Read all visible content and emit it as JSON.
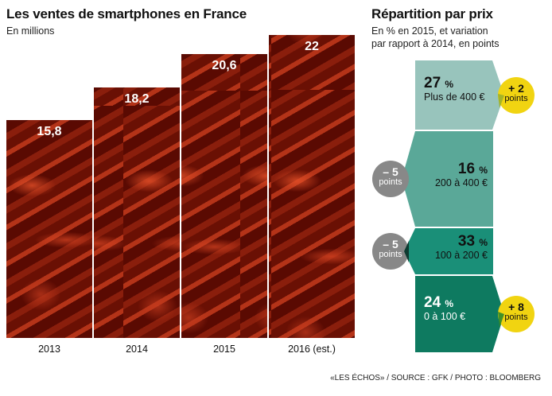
{
  "left": {
    "title": "Les ventes de smartphones en France",
    "subtitle": "En millions"
  },
  "right": {
    "title": "Répartition par prix",
    "subtitle_line1": "En % en 2015, et variation",
    "subtitle_line2": "par rapport à 2014, en points"
  },
  "source": "«LES ÉCHOS» / SOURCE : GFK / PHOTO : BLOOMBERG",
  "colors": {
    "bar": "#6a1004",
    "seg1": "#98c4bc",
    "seg2": "#5aa898",
    "seg3": "#1a8f78",
    "seg4": "#0e7a60",
    "yellow": "#f1d411",
    "grey": "#888888"
  },
  "chart_data": [
    {
      "type": "bar",
      "title": "Les ventes de smartphones en France",
      "ylabel": "En millions",
      "categories": [
        "2013",
        "2014",
        "2015",
        "2016 (est.)"
      ],
      "values": [
        15.8,
        18.2,
        20.6,
        22
      ],
      "labels": [
        "15,8",
        "18,2",
        "20,6",
        "22"
      ],
      "ylim": [
        0,
        22.5
      ]
    },
    {
      "type": "stacked",
      "title": "Répartition par prix",
      "segments": [
        {
          "pct": "27",
          "unit": "%",
          "range": "Plus de 400 €",
          "change": "+ 2",
          "change_unit": "points",
          "value": 27,
          "delta": 2
        },
        {
          "pct": "16",
          "unit": "%",
          "range": "200 à 400 €",
          "change": "– 5",
          "change_unit": "points",
          "value": 16,
          "delta": -5
        },
        {
          "pct": "33",
          "unit": "%",
          "range": "100 à 200 €",
          "change": "– 5",
          "change_unit": "points",
          "value": 33,
          "delta": -5
        },
        {
          "pct": "24",
          "unit": "%",
          "range": "0 à 100 €",
          "change": "+ 8",
          "change_unit": "points",
          "value": 24,
          "delta": 8
        }
      ]
    }
  ]
}
